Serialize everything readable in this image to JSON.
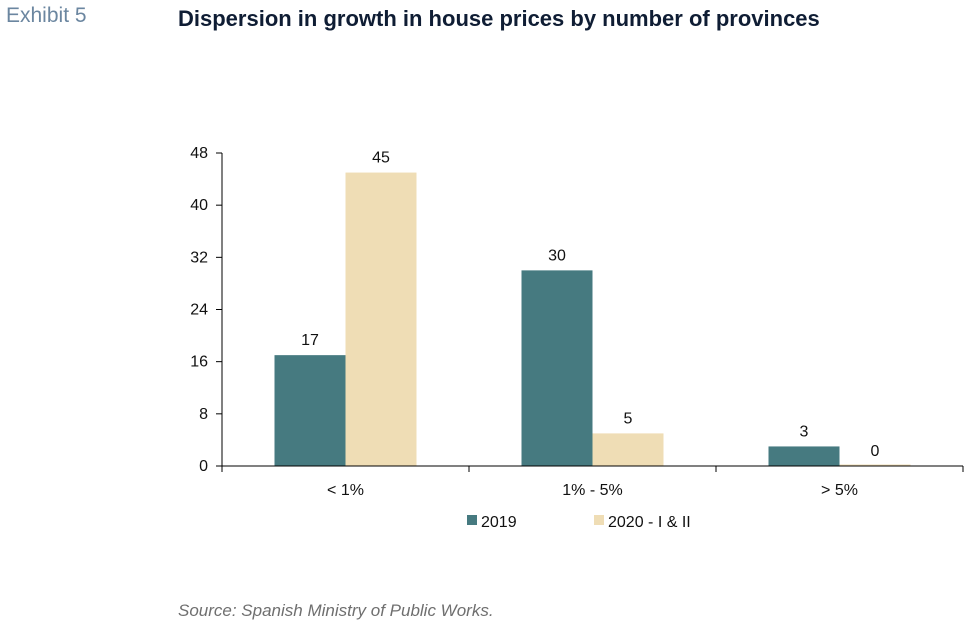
{
  "header": {
    "exhibit": "Exhibit 5",
    "title": "Dispersion in growth in house prices by number of provinces"
  },
  "footer": {
    "source": "Source: Spanish Ministry of Public Works."
  },
  "colors": {
    "series_2019": "#467A80",
    "series_2020": "#EFDDB5",
    "axis": "#000000"
  },
  "chart_data": {
    "type": "bar",
    "title": "Dispersion in growth in house prices by number of provinces",
    "xlabel": "",
    "ylabel": "",
    "categories": [
      "< 1%",
      "1% - 5%",
      "> 5%"
    ],
    "series": [
      {
        "name": "2019",
        "values": [
          17,
          30,
          3
        ]
      },
      {
        "name": "2020 - I & II",
        "values": [
          45,
          5,
          0
        ]
      }
    ],
    "ylim": [
      0,
      48
    ],
    "yticks": [
      0,
      8,
      16,
      24,
      32,
      40,
      48
    ],
    "grid": false,
    "legend": "bottom-center",
    "data_labels": true
  }
}
